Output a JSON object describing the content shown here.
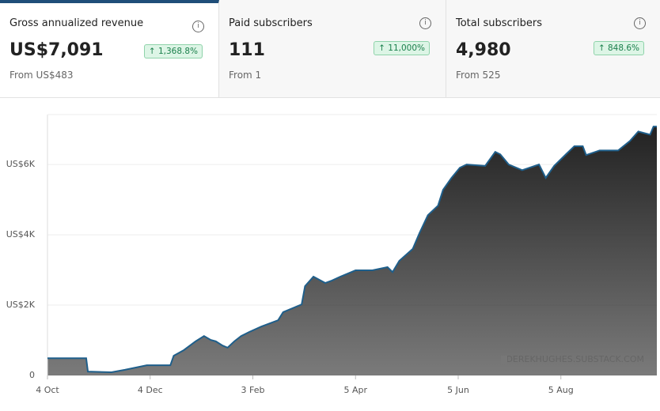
{
  "cards": [
    {
      "title": "Gross annualized revenue",
      "value": "US$7,091",
      "change": "1,368.8%",
      "from": "From US$483"
    },
    {
      "title": "Paid subscribers",
      "value": "111",
      "change": "11,000%",
      "from": "From 1"
    },
    {
      "title": "Total subscribers",
      "value": "4,980",
      "change": "848.6%",
      "from": "From 525"
    }
  ],
  "chart_data": {
    "type": "area",
    "watermark": "DEREKHUGHES.SUBSTACK.COM",
    "color": "#1f5f8b",
    "fill": "#b9d3e2",
    "xlim": [
      0,
      362
    ],
    "xticks": [
      {
        "value": 0,
        "label": "4 Oct"
      },
      {
        "value": 61,
        "label": "4 Dec"
      },
      {
        "value": 122,
        "label": "3 Feb"
      },
      {
        "value": 183,
        "label": "5 Apr"
      },
      {
        "value": 244,
        "label": "5 Jun"
      },
      {
        "value": 305,
        "label": "5 Aug"
      }
    ],
    "ylim": [
      0,
      7420
    ],
    "yticks": [
      0,
      {
        "value": 2000,
        "label": "US$2K"
      },
      {
        "value": 4000,
        "label": "US$4K"
      },
      {
        "value": 6000,
        "label": "US$6K"
      }
    ],
    "grid": true,
    "x": [
      0,
      23,
      24,
      38,
      46,
      59,
      73,
      75,
      81,
      88,
      93,
      97,
      100,
      104,
      107,
      111,
      115,
      120,
      127,
      137,
      140,
      151,
      153,
      158,
      165,
      169,
      174,
      183,
      193,
      202,
      205,
      209,
      217,
      221,
      226,
      232,
      235,
      240,
      245,
      249,
      260,
      266,
      269,
      274,
      282,
      292,
      296,
      301,
      308,
      313,
      318,
      320,
      328,
      339,
      346,
      351,
      358,
      360,
      362
    ],
    "values": [
      490,
      490,
      110,
      90,
      160,
      290,
      290,
      560,
      720,
      970,
      1120,
      1010,
      970,
      850,
      790,
      970,
      1120,
      1240,
      1390,
      1570,
      1800,
      2020,
      2540,
      2810,
      2630,
      2700,
      2810,
      2990,
      2990,
      3080,
      2940,
      3260,
      3600,
      4050,
      4560,
      4830,
      5280,
      5620,
      5910,
      6000,
      5960,
      6360,
      6290,
      6000,
      5840,
      6000,
      5620,
      5960,
      6290,
      6520,
      6520,
      6270,
      6400,
      6400,
      6670,
      6940,
      6850,
      7080,
      7080
    ]
  }
}
